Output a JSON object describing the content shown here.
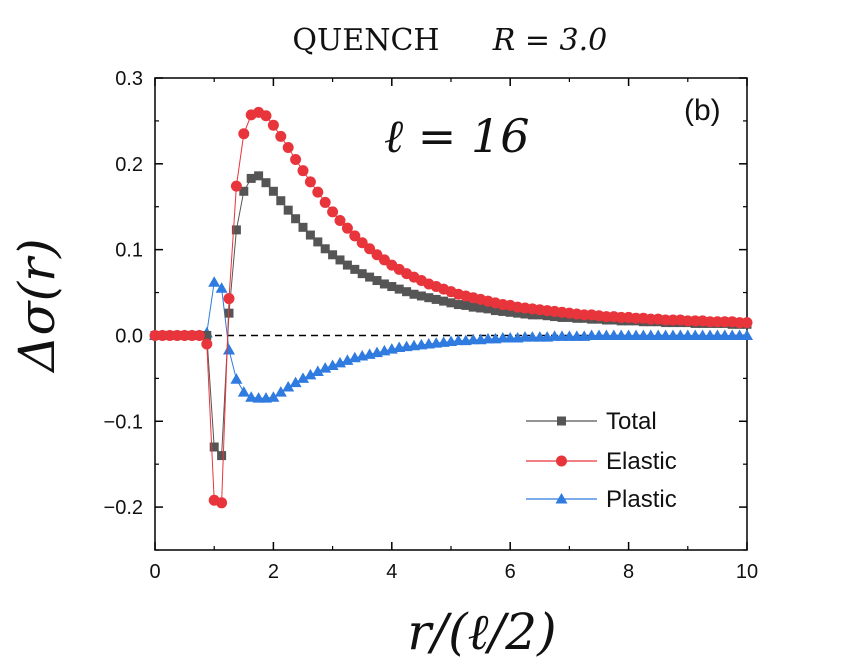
{
  "chart_data": {
    "type": "scatter",
    "title_label": "QUENCH",
    "title_param": "R = 3.0",
    "panel_label": "(b)",
    "annotation": "ℓ = 16",
    "xlabel": "r/(ℓ/2)",
    "ylabel": "Δσ(r)",
    "xlim": [
      0,
      10
    ],
    "ylim": [
      -0.25,
      0.3
    ],
    "xticks": [
      0,
      2,
      4,
      6,
      8,
      10
    ],
    "yticks": [
      -0.2,
      -0.1,
      0.0,
      0.1,
      0.2,
      0.3
    ],
    "ytick_labels": [
      "−0.2",
      "−0.1",
      "0.0",
      "0.1",
      "0.2",
      "0.3"
    ],
    "zero_line": "dashed",
    "legend_position": "lower-right",
    "series": [
      {
        "name": "Total",
        "color": "#555555",
        "marker": "square",
        "x": [
          0.0,
          0.125,
          0.25,
          0.375,
          0.5,
          0.625,
          0.75,
          0.875,
          1.0,
          1.125,
          1.25,
          1.375,
          1.5,
          1.625,
          1.75,
          1.875,
          2.0,
          2.125,
          2.25,
          2.375,
          2.5,
          2.625,
          2.75,
          2.875,
          3.0,
          3.125,
          3.25,
          3.375,
          3.5,
          3.625,
          3.75,
          3.875,
          4.0,
          4.125,
          4.25,
          4.375,
          4.5,
          4.625,
          4.75,
          4.875,
          5.0,
          5.125,
          5.25,
          5.375,
          5.5,
          5.625,
          5.75,
          5.875,
          6.0,
          6.125,
          6.25,
          6.375,
          6.5,
          6.625,
          6.75,
          6.875,
          7.0,
          7.125,
          7.25,
          7.375,
          7.5,
          7.625,
          7.75,
          7.875,
          8.0,
          8.125,
          8.25,
          8.375,
          8.5,
          8.625,
          8.75,
          8.875,
          9.0,
          9.125,
          9.25,
          9.375,
          9.5,
          9.625,
          9.75,
          9.875,
          10.0
        ],
        "y": [
          0.0,
          0.0,
          0.0,
          0.0,
          0.0,
          0.0,
          0.0,
          0.0,
          -0.13,
          -0.14,
          0.026,
          0.123,
          0.168,
          0.183,
          0.186,
          0.178,
          0.168,
          0.157,
          0.146,
          0.136,
          0.126,
          0.117,
          0.109,
          0.101,
          0.094,
          0.088,
          0.082,
          0.077,
          0.072,
          0.068,
          0.064,
          0.06,
          0.057,
          0.054,
          0.051,
          0.048,
          0.046,
          0.044,
          0.042,
          0.04,
          0.038,
          0.036,
          0.035,
          0.033,
          0.032,
          0.031,
          0.029,
          0.028,
          0.027,
          0.026,
          0.025,
          0.024,
          0.024,
          0.023,
          0.022,
          0.021,
          0.021,
          0.02,
          0.02,
          0.019,
          0.019,
          0.018,
          0.018,
          0.017,
          0.017,
          0.017,
          0.016,
          0.016,
          0.016,
          0.015,
          0.015,
          0.015,
          0.015,
          0.014,
          0.014,
          0.014,
          0.014,
          0.014,
          0.013,
          0.013,
          0.013
        ]
      },
      {
        "name": "Elastic",
        "color": "#e8353b",
        "marker": "circle",
        "x": [
          0.0,
          0.125,
          0.25,
          0.375,
          0.5,
          0.625,
          0.75,
          0.875,
          1.0,
          1.125,
          1.25,
          1.375,
          1.5,
          1.625,
          1.75,
          1.875,
          2.0,
          2.125,
          2.25,
          2.375,
          2.5,
          2.625,
          2.75,
          2.875,
          3.0,
          3.125,
          3.25,
          3.375,
          3.5,
          3.625,
          3.75,
          3.875,
          4.0,
          4.125,
          4.25,
          4.375,
          4.5,
          4.625,
          4.75,
          4.875,
          5.0,
          5.125,
          5.25,
          5.375,
          5.5,
          5.625,
          5.75,
          5.875,
          6.0,
          6.125,
          6.25,
          6.375,
          6.5,
          6.625,
          6.75,
          6.875,
          7.0,
          7.125,
          7.25,
          7.375,
          7.5,
          7.625,
          7.75,
          7.875,
          8.0,
          8.125,
          8.25,
          8.375,
          8.5,
          8.625,
          8.75,
          8.875,
          9.0,
          9.125,
          9.25,
          9.375,
          9.5,
          9.625,
          9.75,
          9.875,
          10.0
        ],
        "y": [
          0.0,
          0.0,
          0.0,
          0.0,
          0.0,
          0.0,
          0.0,
          -0.01,
          -0.192,
          -0.195,
          0.043,
          0.174,
          0.235,
          0.257,
          0.26,
          0.256,
          0.245,
          0.232,
          0.219,
          0.205,
          0.192,
          0.179,
          0.167,
          0.155,
          0.144,
          0.134,
          0.125,
          0.116,
          0.108,
          0.101,
          0.094,
          0.088,
          0.082,
          0.077,
          0.072,
          0.068,
          0.064,
          0.06,
          0.057,
          0.054,
          0.051,
          0.048,
          0.046,
          0.044,
          0.042,
          0.04,
          0.038,
          0.036,
          0.035,
          0.033,
          0.032,
          0.031,
          0.03,
          0.029,
          0.028,
          0.027,
          0.026,
          0.025,
          0.024,
          0.024,
          0.023,
          0.022,
          0.022,
          0.021,
          0.021,
          0.02,
          0.02,
          0.019,
          0.019,
          0.018,
          0.018,
          0.018,
          0.017,
          0.017,
          0.017,
          0.016,
          0.016,
          0.016,
          0.016,
          0.015,
          0.015
        ]
      },
      {
        "name": "Plastic",
        "color": "#2f7be0",
        "marker": "triangle",
        "x": [
          0.0,
          0.125,
          0.25,
          0.375,
          0.5,
          0.625,
          0.75,
          0.875,
          1.0,
          1.125,
          1.25,
          1.375,
          1.5,
          1.625,
          1.75,
          1.875,
          2.0,
          2.125,
          2.25,
          2.375,
          2.5,
          2.625,
          2.75,
          2.875,
          3.0,
          3.125,
          3.25,
          3.375,
          3.5,
          3.625,
          3.75,
          3.875,
          4.0,
          4.125,
          4.25,
          4.375,
          4.5,
          4.625,
          4.75,
          4.875,
          5.0,
          5.125,
          5.25,
          5.375,
          5.5,
          5.625,
          5.75,
          5.875,
          6.0,
          6.125,
          6.25,
          6.375,
          6.5,
          6.625,
          6.75,
          6.875,
          7.0,
          7.125,
          7.25,
          7.375,
          7.5,
          7.625,
          7.75,
          7.875,
          8.0,
          8.125,
          8.25,
          8.375,
          8.5,
          8.625,
          8.75,
          8.875,
          9.0,
          9.125,
          9.25,
          9.375,
          9.5,
          9.625,
          9.75,
          9.875,
          10.0
        ],
        "y": [
          0.0,
          0.0,
          0.0,
          0.0,
          0.0,
          0.0,
          0.0,
          0.003,
          0.062,
          0.055,
          -0.017,
          -0.051,
          -0.066,
          -0.072,
          -0.073,
          -0.073,
          -0.072,
          -0.066,
          -0.06,
          -0.055,
          -0.05,
          -0.046,
          -0.042,
          -0.038,
          -0.035,
          -0.032,
          -0.029,
          -0.026,
          -0.024,
          -0.022,
          -0.02,
          -0.018,
          -0.016,
          -0.014,
          -0.013,
          -0.012,
          -0.011,
          -0.01,
          -0.009,
          -0.008,
          -0.007,
          -0.006,
          -0.006,
          -0.005,
          -0.005,
          -0.004,
          -0.004,
          -0.003,
          -0.003,
          -0.003,
          -0.002,
          -0.002,
          -0.002,
          -0.002,
          -0.001,
          -0.001,
          -0.001,
          -0.001,
          -0.001,
          0.0,
          0.0,
          0.0,
          0.0,
          0.0,
          0.0,
          0.0,
          0.0,
          0.0,
          0.0,
          0.0,
          0.0,
          0.0,
          0.0,
          0.0,
          0.0,
          0.0,
          0.0,
          0.0,
          0.0,
          0.0,
          0.0
        ]
      }
    ]
  }
}
